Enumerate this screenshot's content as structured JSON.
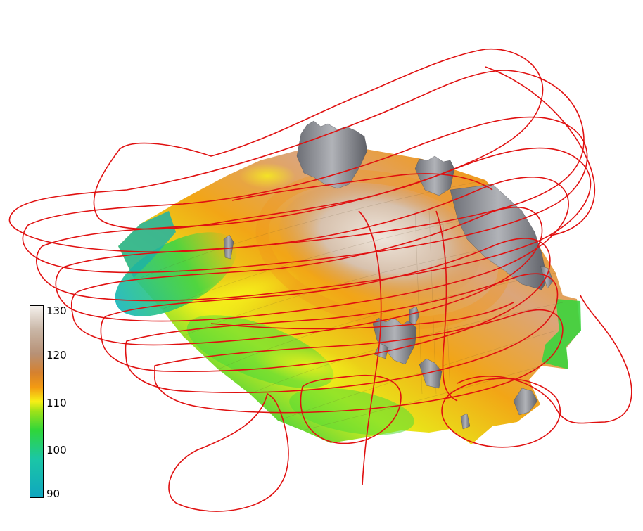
{
  "colorbar": {
    "labels": [
      "130",
      "120",
      "110",
      "100",
      "90"
    ],
    "range": [
      90,
      130
    ],
    "stops": [
      {
        "value": 90,
        "color": "#0fa6bf"
      },
      {
        "value": 98,
        "color": "#1bc6a6"
      },
      {
        "value": 104,
        "color": "#2fd63a"
      },
      {
        "value": 108,
        "color": "#9fe218"
      },
      {
        "value": 110,
        "color": "#f7f016"
      },
      {
        "value": 113,
        "color": "#f39a12"
      },
      {
        "value": 116,
        "color": "#d6812e"
      },
      {
        "value": 120,
        "color": "#b79176"
      },
      {
        "value": 125,
        "color": "#c9b6a6"
      },
      {
        "value": 130,
        "color": "#f4f0ec"
      }
    ]
  },
  "colors": {
    "trajectory": "#e01010",
    "buildings": "#8b8d93",
    "background": "#ffffff"
  }
}
